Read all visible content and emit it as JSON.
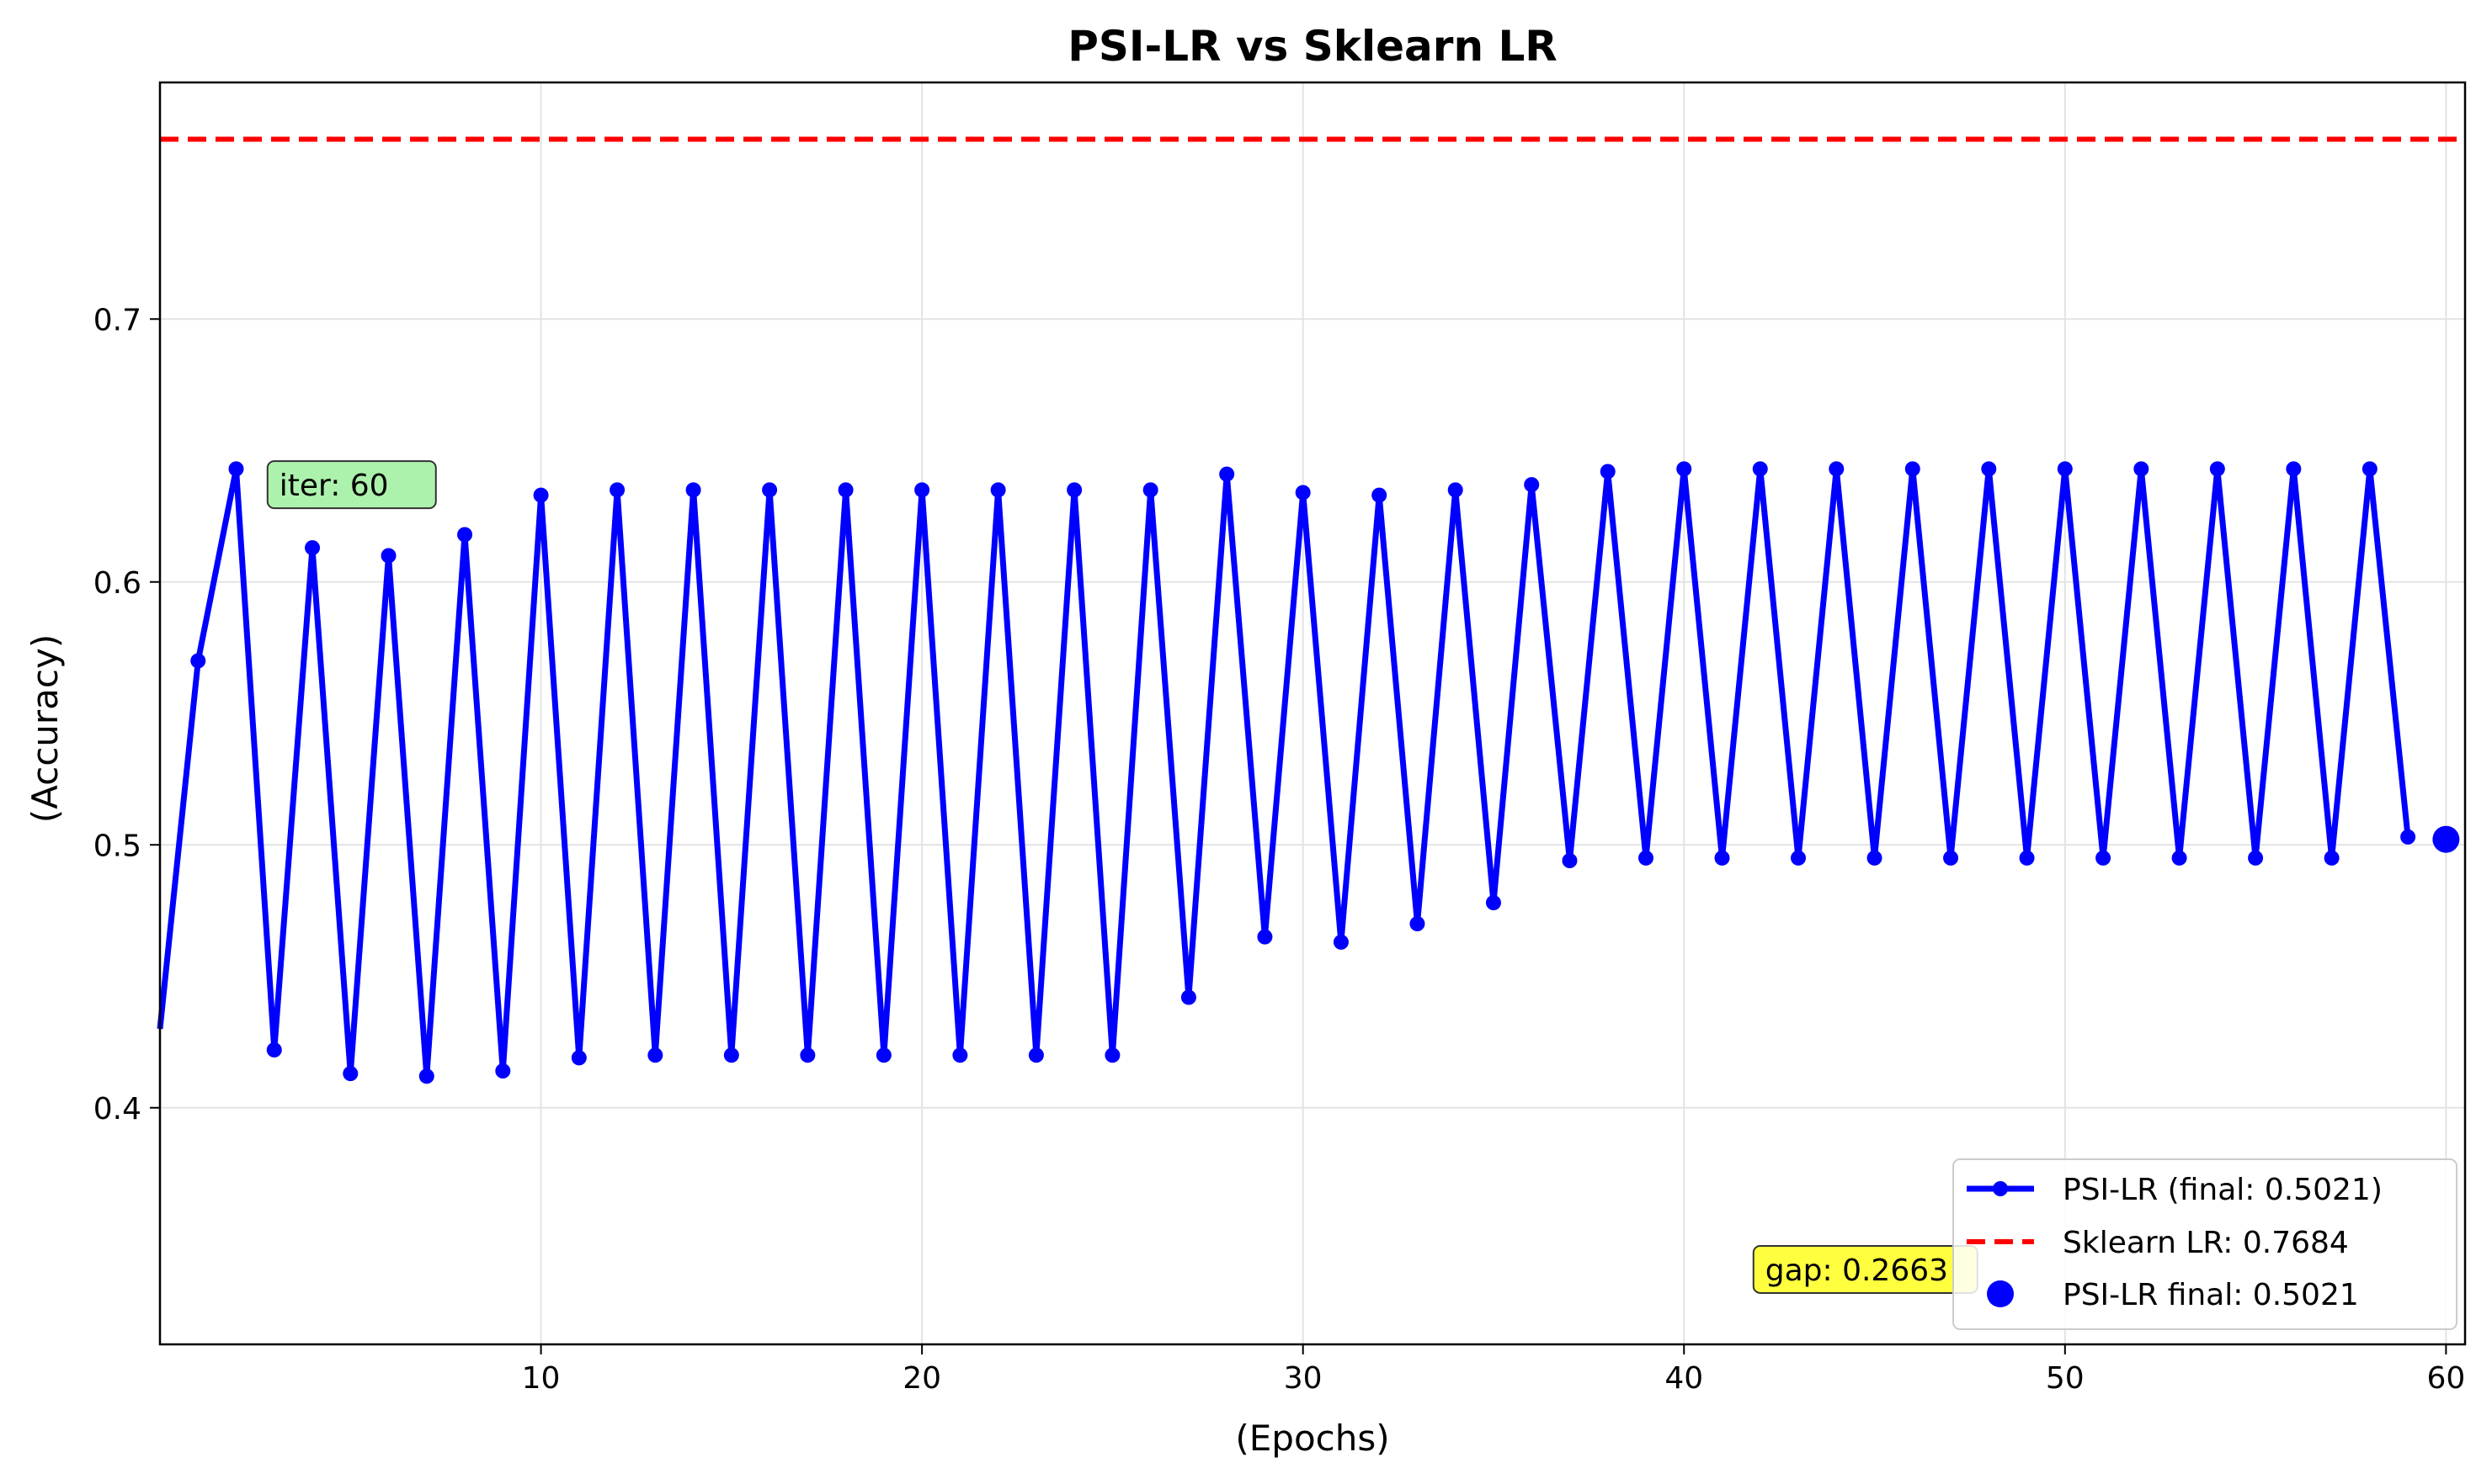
{
  "chart_data": {
    "type": "line",
    "title": "PSI-LR vs Sklearn LR",
    "xlabel": "(Epochs)",
    "ylabel": "(Accuracy)",
    "xlim": [
      0,
      60.5
    ],
    "ylim": [
      0.31,
      0.79
    ],
    "xticks": [
      10,
      20,
      30,
      40,
      50,
      60
    ],
    "yticks": [
      0.4,
      0.5,
      0.6,
      0.7
    ],
    "grid": true,
    "legend_position": "lower right",
    "series": [
      {
        "name": "PSI-LR (final: 0.5021)",
        "style": "line-with-markers",
        "color": "#0000ff",
        "x": [
          0,
          1,
          2,
          3,
          4,
          5,
          6,
          7,
          8,
          9,
          10,
          11,
          12,
          13,
          14,
          15,
          16,
          17,
          18,
          19,
          20,
          21,
          22,
          23,
          24,
          25,
          26,
          27,
          28,
          29,
          30,
          31,
          32,
          33,
          34,
          35,
          36,
          37,
          38,
          39,
          40,
          41,
          42,
          43,
          44,
          45,
          46,
          47,
          48,
          49,
          50,
          51,
          52,
          53,
          54,
          55,
          56,
          57,
          58,
          59
        ],
        "y": [
          0.43,
          0.57,
          0.643,
          0.422,
          0.613,
          0.413,
          0.61,
          0.412,
          0.618,
          0.414,
          0.633,
          0.419,
          0.635,
          0.42,
          0.635,
          0.42,
          0.635,
          0.42,
          0.635,
          0.42,
          0.635,
          0.42,
          0.635,
          0.42,
          0.635,
          0.42,
          0.635,
          0.442,
          0.641,
          0.465,
          0.634,
          0.463,
          0.633,
          0.47,
          0.635,
          0.478,
          0.637,
          0.494,
          0.642,
          0.495,
          0.643,
          0.495,
          0.643,
          0.495,
          0.643,
          0.495,
          0.643,
          0.495,
          0.643,
          0.495,
          0.643,
          0.495,
          0.643,
          0.495,
          0.643,
          0.495,
          0.643,
          0.495,
          0.643,
          0.503
        ]
      },
      {
        "name": "Sklearn LR: 0.7684",
        "style": "dashed-hline",
        "color": "#ff0000",
        "y": 0.7684
      },
      {
        "name": "PSI-LR final: 0.5021",
        "style": "marker",
        "color": "#0000ff",
        "x": 60,
        "y": 0.5021
      }
    ],
    "annotations": [
      {
        "text": "iter: 60",
        "x": 3,
        "y": 0.637,
        "box_color": "#90ee90"
      },
      {
        "text": "gap: 0.2663",
        "x": 42,
        "y": 0.3385,
        "box_color": "#ffff00"
      }
    ]
  }
}
